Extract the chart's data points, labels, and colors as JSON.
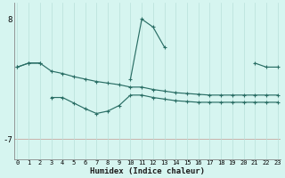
{
  "xlabel": "Humidex (Indice chaleur)",
  "bg_color": "#d6f5f0",
  "line_color": "#2a6e65",
  "grid_color_x": "#b8e0da",
  "grid_color_y": "#c8a8a0",
  "x": [
    0,
    1,
    2,
    3,
    4,
    5,
    6,
    7,
    8,
    9,
    10,
    11,
    12,
    13,
    14,
    15,
    16,
    17,
    18,
    19,
    20,
    21,
    22,
    23
  ],
  "line_A": [
    2.0,
    2.5,
    2.5,
    null,
    null,
    null,
    null,
    null,
    null,
    null,
    0.5,
    8.0,
    7.0,
    4.5,
    null,
    null,
    null,
    null,
    null,
    null,
    null,
    2.5,
    2.0,
    2.0
  ],
  "line_B": [
    2.0,
    2.5,
    2.5,
    1.5,
    1.2,
    0.8,
    0.5,
    0.2,
    0.0,
    -0.2,
    -0.5,
    -0.5,
    -0.8,
    -1.0,
    -1.2,
    -1.3,
    -1.4,
    -1.5,
    -1.5,
    -1.5,
    -1.5,
    -1.5,
    -1.5,
    -1.5
  ],
  "line_C": [
    null,
    null,
    null,
    -1.8,
    -1.8,
    -2.5,
    -3.2,
    -3.8,
    -3.5,
    -2.8,
    -1.5,
    -1.5,
    -1.8,
    -2.0,
    -2.2,
    -2.3,
    -2.4,
    -2.4,
    -2.4,
    -2.4,
    -2.4,
    -2.4,
    -2.4,
    -2.4
  ],
  "ytick_val": -7,
  "ytick_label": "-7",
  "ytop_val": 8,
  "ytop_label": "8",
  "ylim": [
    -9.5,
    10.0
  ],
  "xlim": [
    -0.3,
    23.3
  ]
}
